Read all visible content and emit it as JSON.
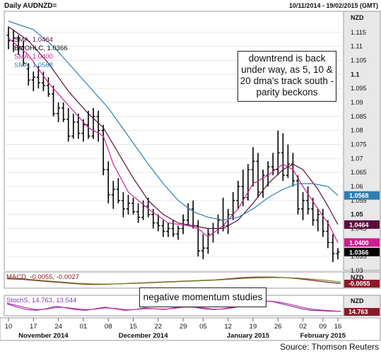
{
  "header": {
    "title": "Daily AUDNZD=",
    "date_range": "10/11/2014 - 19/02/2015 (GMT)"
  },
  "annotations": {
    "main": "downtrend is back under way, as 5, 10 & 20 dma's track south - parity beckons",
    "momentum": "negative momentum studies"
  },
  "source": "Source: Thomson Reuters",
  "colors": {
    "background": "#ffffff",
    "bars": "#000000",
    "sma_5": "#cc1f8f",
    "sma_10": "#5a0f3c",
    "sma_20": "#2e7fb0",
    "macd_line": "#8a1a2a",
    "macd_signal": "#6b8e23",
    "stoch_k": "#7b3fb5",
    "stoch_d": "#cc3399",
    "axis_panel": "#e8e8e8"
  },
  "chart_data": [
    {
      "type": "ohlc",
      "panel": "price",
      "y_unit_label": "NZD",
      "ylim": [
        1.03,
        1.12
      ],
      "yticks": [
        "1.115",
        "1.11",
        "1.105",
        "1.1",
        "1.095",
        "1.09",
        "1.085",
        "1.08",
        "1.075",
        "1.07",
        "1.065",
        "1.06",
        "1.055",
        "1.05",
        "1.045",
        "1.04",
        "1.035",
        "1.03"
      ],
      "legend": [
        {
          "name": "SMA, 1.0464",
          "color": "#5a0f3c"
        },
        {
          "name": "BarOHLC, 1.0366",
          "color": "#000000"
        },
        {
          "name": "SMA, 1.0400",
          "color": "#cc1f8f"
        },
        {
          "name": "SMA, 1.0568",
          "color": "#2e7fb0"
        }
      ],
      "value_tags": [
        {
          "label": "1.0568",
          "value": 1.0568,
          "color": "#2e7fb0"
        },
        {
          "label": "1.0464",
          "value": 1.0464,
          "color": "#5a0f3c"
        },
        {
          "label": "1.0400",
          "value": 1.04,
          "color": "#cc1f8f"
        },
        {
          "label": "1.0366",
          "value": 1.0366,
          "color": "#000000"
        }
      ],
      "bars": [
        {
          "o": 1.114,
          "h": 1.117,
          "l": 1.109,
          "c": 1.112
        },
        {
          "o": 1.112,
          "h": 1.116,
          "l": 1.108,
          "c": 1.113
        },
        {
          "o": 1.113,
          "h": 1.114,
          "l": 1.107,
          "c": 1.11
        },
        {
          "o": 1.11,
          "h": 1.112,
          "l": 1.103,
          "c": 1.104
        },
        {
          "o": 1.102,
          "h": 1.104,
          "l": 1.096,
          "c": 1.098
        },
        {
          "o": 1.098,
          "h": 1.101,
          "l": 1.094,
          "c": 1.099
        },
        {
          "o": 1.099,
          "h": 1.103,
          "l": 1.095,
          "c": 1.097
        },
        {
          "o": 1.097,
          "h": 1.101,
          "l": 1.094,
          "c": 1.096
        },
        {
          "o": 1.096,
          "h": 1.099,
          "l": 1.092,
          "c": 1.093
        },
        {
          "o": 1.093,
          "h": 1.096,
          "l": 1.085,
          "c": 1.086
        },
        {
          "o": 1.086,
          "h": 1.09,
          "l": 1.083,
          "c": 1.088
        },
        {
          "o": 1.088,
          "h": 1.09,
          "l": 1.083,
          "c": 1.084
        },
        {
          "o": 1.084,
          "h": 1.088,
          "l": 1.076,
          "c": 1.078
        },
        {
          "o": 1.078,
          "h": 1.086,
          "l": 1.077,
          "c": 1.083
        },
        {
          "o": 1.083,
          "h": 1.086,
          "l": 1.077,
          "c": 1.079
        },
        {
          "o": 1.079,
          "h": 1.084,
          "l": 1.076,
          "c": 1.082
        },
        {
          "o": 1.082,
          "h": 1.087,
          "l": 1.077,
          "c": 1.078
        },
        {
          "o": 1.078,
          "h": 1.088,
          "l": 1.077,
          "c": 1.085
        },
        {
          "o": 1.085,
          "h": 1.087,
          "l": 1.076,
          "c": 1.08
        },
        {
          "o": 1.08,
          "h": 1.082,
          "l": 1.064,
          "c": 1.066
        },
        {
          "o": 1.066,
          "h": 1.069,
          "l": 1.054,
          "c": 1.057
        },
        {
          "o": 1.057,
          "h": 1.062,
          "l": 1.052,
          "c": 1.059
        },
        {
          "o": 1.059,
          "h": 1.063,
          "l": 1.054,
          "c": 1.055
        },
        {
          "o": 1.055,
          "h": 1.058,
          "l": 1.049,
          "c": 1.052
        },
        {
          "o": 1.052,
          "h": 1.057,
          "l": 1.05,
          "c": 1.054
        },
        {
          "o": 1.054,
          "h": 1.056,
          "l": 1.05,
          "c": 1.051
        },
        {
          "o": 1.051,
          "h": 1.054,
          "l": 1.047,
          "c": 1.049
        },
        {
          "o": 1.049,
          "h": 1.055,
          "l": 1.048,
          "c": 1.053
        },
        {
          "o": 1.053,
          "h": 1.056,
          "l": 1.049,
          "c": 1.05
        },
        {
          "o": 1.05,
          "h": 1.052,
          "l": 1.045,
          "c": 1.047
        },
        {
          "o": 1.047,
          "h": 1.05,
          "l": 1.044,
          "c": 1.046
        },
        {
          "o": 1.046,
          "h": 1.048,
          "l": 1.042,
          "c": 1.044
        },
        {
          "o": 1.044,
          "h": 1.047,
          "l": 1.042,
          "c": 1.045
        },
        {
          "o": 1.045,
          "h": 1.048,
          "l": 1.042,
          "c": 1.043
        },
        {
          "o": 1.043,
          "h": 1.046,
          "l": 1.041,
          "c": 1.045
        },
        {
          "o": 1.045,
          "h": 1.05,
          "l": 1.043,
          "c": 1.048
        },
        {
          "o": 1.048,
          "h": 1.054,
          "l": 1.046,
          "c": 1.052
        },
        {
          "o": 1.052,
          "h": 1.055,
          "l": 1.045,
          "c": 1.046
        },
        {
          "o": 1.046,
          "h": 1.048,
          "l": 1.035,
          "c": 1.037
        },
        {
          "o": 1.037,
          "h": 1.043,
          "l": 1.034,
          "c": 1.038
        },
        {
          "o": 1.038,
          "h": 1.045,
          "l": 1.036,
          "c": 1.043
        },
        {
          "o": 1.043,
          "h": 1.047,
          "l": 1.04,
          "c": 1.045
        },
        {
          "o": 1.045,
          "h": 1.05,
          "l": 1.043,
          "c": 1.048
        },
        {
          "o": 1.048,
          "h": 1.056,
          "l": 1.044,
          "c": 1.046
        },
        {
          "o": 1.046,
          "h": 1.052,
          "l": 1.043,
          "c": 1.05
        },
        {
          "o": 1.05,
          "h": 1.058,
          "l": 1.048,
          "c": 1.055
        },
        {
          "o": 1.055,
          "h": 1.062,
          "l": 1.052,
          "c": 1.06
        },
        {
          "o": 1.06,
          "h": 1.066,
          "l": 1.053,
          "c": 1.056
        },
        {
          "o": 1.056,
          "h": 1.068,
          "l": 1.055,
          "c": 1.066
        },
        {
          "o": 1.066,
          "h": 1.074,
          "l": 1.06,
          "c": 1.069
        },
        {
          "o": 1.069,
          "h": 1.072,
          "l": 1.056,
          "c": 1.058
        },
        {
          "o": 1.058,
          "h": 1.066,
          "l": 1.056,
          "c": 1.064
        },
        {
          "o": 1.064,
          "h": 1.069,
          "l": 1.06,
          "c": 1.067
        },
        {
          "o": 1.067,
          "h": 1.072,
          "l": 1.064,
          "c": 1.066
        },
        {
          "o": 1.066,
          "h": 1.08,
          "l": 1.064,
          "c": 1.072
        },
        {
          "o": 1.072,
          "h": 1.079,
          "l": 1.062,
          "c": 1.064
        },
        {
          "o": 1.064,
          "h": 1.075,
          "l": 1.063,
          "c": 1.068
        },
        {
          "o": 1.068,
          "h": 1.072,
          "l": 1.06,
          "c": 1.062
        },
        {
          "o": 1.062,
          "h": 1.064,
          "l": 1.05,
          "c": 1.052
        },
        {
          "o": 1.052,
          "h": 1.058,
          "l": 1.048,
          "c": 1.055
        },
        {
          "o": 1.055,
          "h": 1.06,
          "l": 1.05,
          "c": 1.052
        },
        {
          "o": 1.052,
          "h": 1.056,
          "l": 1.046,
          "c": 1.048
        },
        {
          "o": 1.048,
          "h": 1.052,
          "l": 1.044,
          "c": 1.05
        },
        {
          "o": 1.05,
          "h": 1.052,
          "l": 1.042,
          "c": 1.044
        },
        {
          "o": 1.044,
          "h": 1.048,
          "l": 1.038,
          "c": 1.04
        },
        {
          "o": 1.04,
          "h": 1.043,
          "l": 1.033,
          "c": 1.036
        },
        {
          "o": 1.036,
          "h": 1.038,
          "l": 1.034,
          "c": 1.0366
        }
      ],
      "sma": [
        {
          "name": "SMA 5",
          "color": "#cc1f8f",
          "points": [
            [
              0,
              1.113
            ],
            [
              4,
              1.107
            ],
            [
              8,
              1.097
            ],
            [
              12,
              1.089
            ],
            [
              16,
              1.081
            ],
            [
              19,
              1.078
            ],
            [
              21,
              1.068
            ],
            [
              24,
              1.058
            ],
            [
              28,
              1.052
            ],
            [
              32,
              1.047
            ],
            [
              36,
              1.046
            ],
            [
              38,
              1.045
            ],
            [
              40,
              1.042
            ],
            [
              43,
              1.046
            ],
            [
              46,
              1.052
            ],
            [
              49,
              1.061
            ],
            [
              52,
              1.064
            ],
            [
              55,
              1.068
            ],
            [
              57,
              1.066
            ],
            [
              59,
              1.06
            ],
            [
              62,
              1.052
            ],
            [
              64,
              1.047
            ],
            [
              66,
              1.04
            ]
          ]
        },
        {
          "name": "SMA 10",
          "color": "#5a0f3c",
          "points": [
            [
              0,
              1.117
            ],
            [
              4,
              1.112
            ],
            [
              8,
              1.104
            ],
            [
              12,
              1.094
            ],
            [
              16,
              1.086
            ],
            [
              19,
              1.081
            ],
            [
              22,
              1.072
            ],
            [
              25,
              1.063
            ],
            [
              28,
              1.055
            ],
            [
              31,
              1.05
            ],
            [
              34,
              1.047
            ],
            [
              37,
              1.046
            ],
            [
              40,
              1.045
            ],
            [
              43,
              1.045
            ],
            [
              46,
              1.048
            ],
            [
              49,
              1.054
            ],
            [
              52,
              1.061
            ],
            [
              55,
              1.066
            ],
            [
              57,
              1.068
            ],
            [
              59,
              1.066
            ],
            [
              62,
              1.059
            ],
            [
              64,
              1.053
            ],
            [
              66,
              1.0464
            ]
          ]
        },
        {
          "name": "SMA 20",
          "color": "#2e7fb0",
          "points": [
            [
              0,
              1.119
            ],
            [
              5,
              1.116
            ],
            [
              9,
              1.11
            ],
            [
              13,
              1.102
            ],
            [
              17,
              1.094
            ],
            [
              20,
              1.088
            ],
            [
              24,
              1.078
            ],
            [
              28,
              1.068
            ],
            [
              31,
              1.061
            ],
            [
              34,
              1.055
            ],
            [
              37,
              1.051
            ],
            [
              40,
              1.049
            ],
            [
              43,
              1.048
            ],
            [
              46,
              1.049
            ],
            [
              49,
              1.052
            ],
            [
              52,
              1.056
            ],
            [
              55,
              1.059
            ],
            [
              58,
              1.061
            ],
            [
              61,
              1.061
            ],
            [
              64,
              1.06
            ],
            [
              66,
              1.0568
            ]
          ]
        }
      ]
    },
    {
      "type": "line",
      "panel": "MACD",
      "legend": "MACD, -0.0055, -0.0027",
      "y_unit_label": "NZD",
      "value_tag": "-0.0055",
      "series": [
        {
          "name": "MACD",
          "color": "#8a1a2a",
          "values": [
            0.3,
            0.2,
            0.0,
            -0.2,
            -0.4,
            -0.6,
            -0.7,
            -0.7,
            -0.6,
            -0.5,
            -0.4,
            -0.3,
            -0.2,
            -0.1,
            0.0,
            0.1,
            0.3,
            0.5,
            0.6,
            0.6,
            0.5,
            0.3,
            0.0,
            -0.3,
            -0.55
          ]
        },
        {
          "name": "Signal",
          "color": "#6b8e23",
          "values": [
            0.4,
            0.3,
            0.1,
            -0.1,
            -0.3,
            -0.5,
            -0.6,
            -0.65,
            -0.6,
            -0.55,
            -0.45,
            -0.35,
            -0.25,
            -0.15,
            -0.05,
            0.05,
            0.2,
            0.35,
            0.45,
            0.5,
            0.5,
            0.4,
            0.2,
            0.0,
            -0.27
          ]
        }
      ]
    },
    {
      "type": "line",
      "panel": "Stochastics",
      "legend": "StochS, 14.763, 13.544",
      "y_unit_label": "NZD",
      "value_tag": "14.763",
      "series": [
        {
          "name": "%K",
          "color": "#7b3fb5",
          "values": [
            60,
            40,
            25,
            20,
            30,
            45,
            35,
            25,
            20,
            30,
            40,
            30,
            20,
            25,
            35,
            30,
            25,
            35,
            45,
            40,
            30,
            25,
            30,
            40,
            55,
            70,
            80,
            75,
            60,
            45,
            30,
            20,
            18,
            15,
            14.763
          ]
        },
        {
          "name": "%D",
          "color": "#cc3399",
          "values": [
            65,
            50,
            35,
            25,
            28,
            38,
            38,
            30,
            25,
            28,
            35,
            32,
            25,
            25,
            30,
            30,
            28,
            32,
            40,
            40,
            35,
            28,
            28,
            35,
            48,
            62,
            74,
            76,
            68,
            55,
            40,
            28,
            22,
            18,
            13.544
          ]
        }
      ]
    }
  ],
  "x_axis": {
    "day_ticks": [
      {
        "label": "10",
        "bar": 0
      },
      {
        "label": "17",
        "bar": 5
      },
      {
        "label": "24",
        "bar": 10
      },
      {
        "label": "01",
        "bar": 15
      },
      {
        "label": "08",
        "bar": 20
      },
      {
        "label": "15",
        "bar": 25
      },
      {
        "label": "22",
        "bar": 30
      },
      {
        "label": "29",
        "bar": 35
      },
      {
        "label": "05",
        "bar": 39
      },
      {
        "label": "12",
        "bar": 44
      },
      {
        "label": "19",
        "bar": 49
      },
      {
        "label": "26",
        "bar": 54
      },
      {
        "label": "02",
        "bar": 59
      },
      {
        "label": "09",
        "bar": 63
      },
      {
        "label": "16",
        "bar": 66
      }
    ],
    "months": [
      {
        "label": "November 2014",
        "bar": 7
      },
      {
        "label": "December 2014",
        "bar": 27
      },
      {
        "label": "January 2015",
        "bar": 48
      },
      {
        "label": "February 2015",
        "bar": 63
      }
    ]
  }
}
